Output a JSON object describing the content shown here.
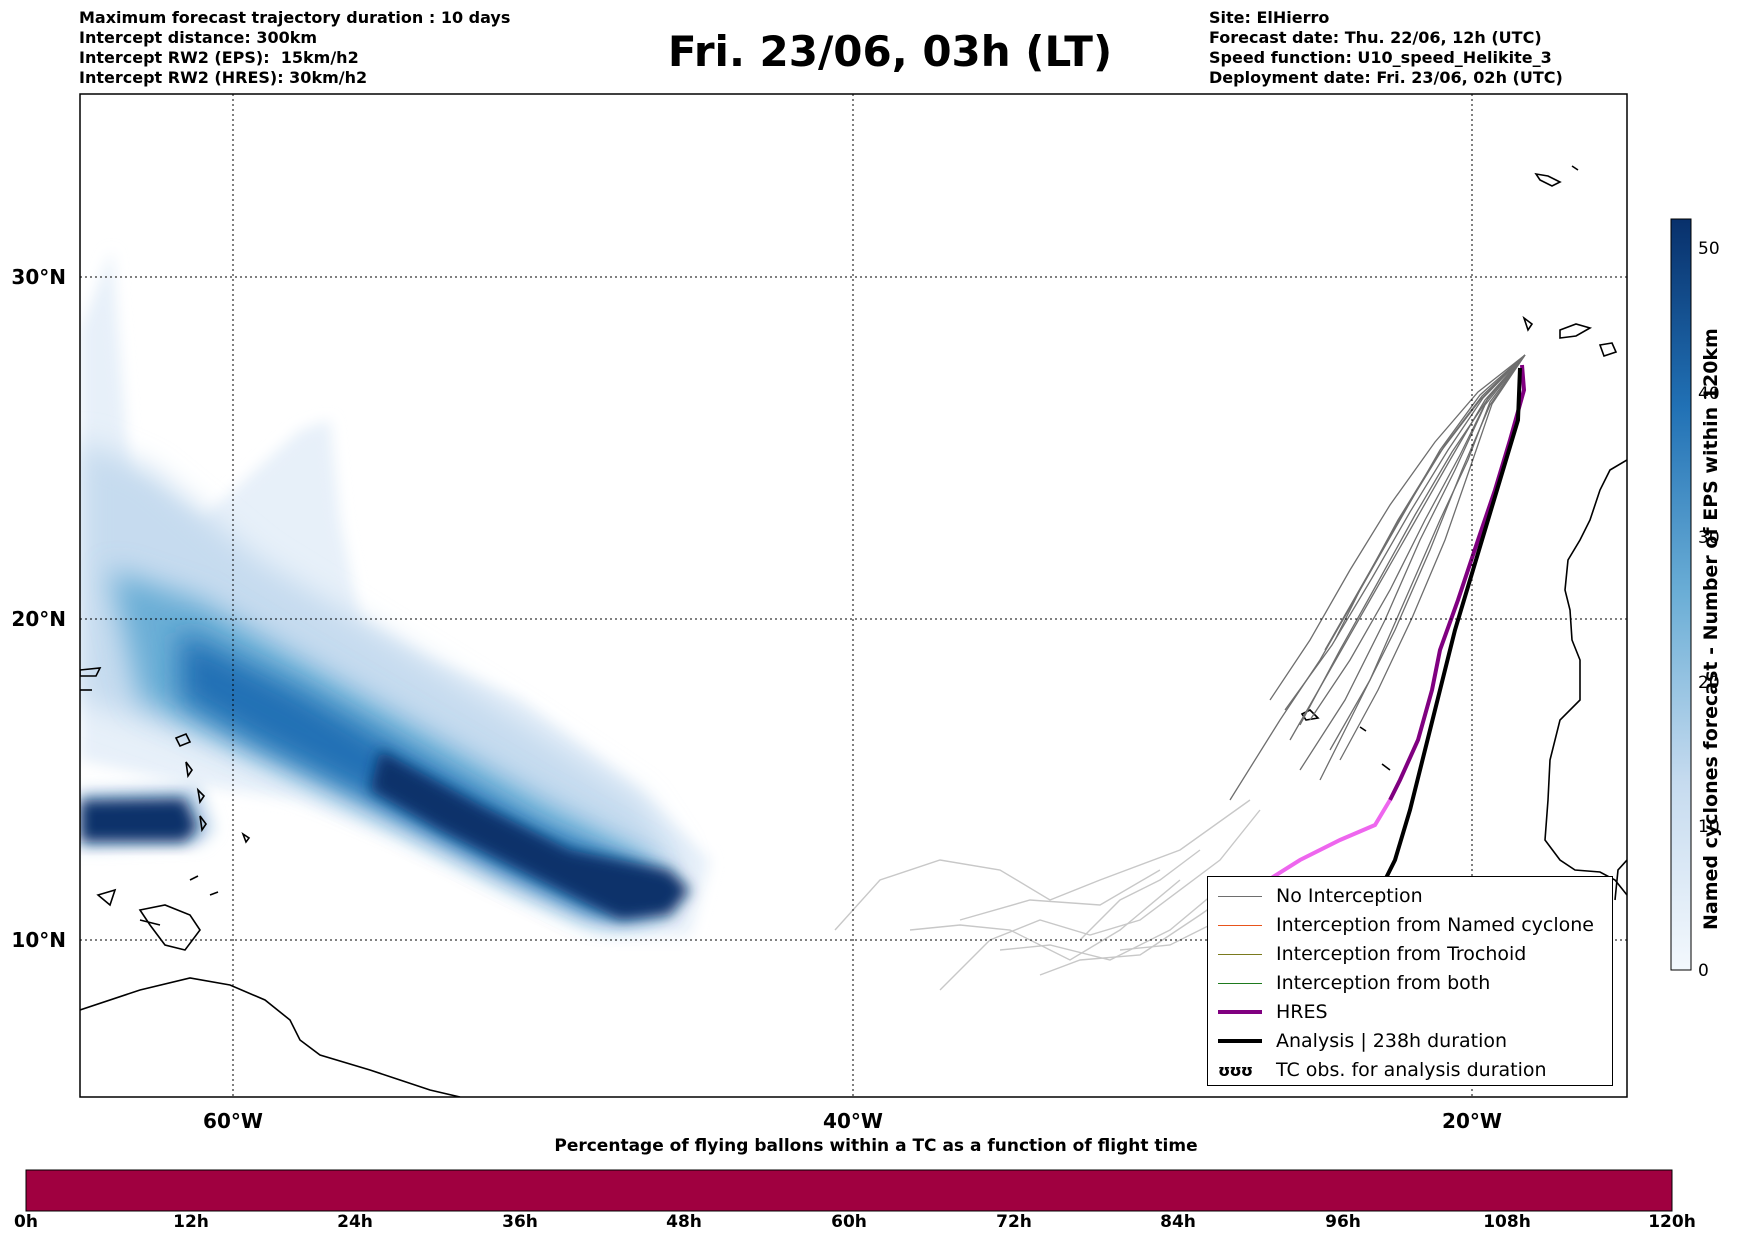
{
  "header": {
    "left": [
      "Maximum forecast trajectory duration : 10 days",
      "Intercept distance: 300km",
      "Intercept RW2 (EPS):  15km/h2",
      "Intercept RW2 (HRES): 30km/h2"
    ],
    "right": [
      "Site: ElHierro",
      "Forecast date: Thu. 22/06, 12h (UTC)",
      "Speed function: U10_speed_Helikite_3",
      "Deployment date: Fri. 23/06, 02h (UTC)"
    ]
  },
  "title": "Fri. 23/06, 03h (LT)",
  "map": {
    "lon_ticks": [
      "60°W",
      "40°W",
      "20°W"
    ],
    "lat_ticks": [
      "30°N",
      "20°N",
      "10°N"
    ],
    "gridlines": "dotted",
    "extent": {
      "lon_min": -65,
      "lon_max": -15,
      "lat_min": 5.4,
      "lat_max": 34.7
    }
  },
  "colorbar": {
    "title": "Named cyclones forecast - Number of EPS within 120km",
    "ticks": [
      "0",
      "10",
      "20",
      "30",
      "40",
      "50"
    ],
    "min": 0,
    "max": 52,
    "colors": [
      "#eef4fb",
      "#c6dbef",
      "#6baed6",
      "#2171b5",
      "#08306b"
    ]
  },
  "legend": {
    "items": [
      {
        "label": "No Interception",
        "color": "#6e6e6e",
        "style": "thin"
      },
      {
        "label": "Interception from Named cyclone",
        "color": "#e8541b",
        "style": "thin"
      },
      {
        "label": "Interception from Trochoid",
        "color": "#7a7a1e",
        "style": "thin"
      },
      {
        "label": "Interception from both",
        "color": "#1e7a1e",
        "style": "thin"
      },
      {
        "label": "HRES",
        "color": "#800080",
        "style": "thick"
      },
      {
        "label": "Analysis | 238h duration",
        "color": "#000000",
        "style": "thick"
      },
      {
        "label": "TC obs. for analysis duration",
        "symbol": "ʊʊʊ"
      }
    ]
  },
  "bottom_bar": {
    "title": "Percentage of flying ballons within a TC as a function of flight time",
    "ticks": [
      "0h",
      "12h",
      "24h",
      "36h",
      "48h",
      "60h",
      "72h",
      "84h",
      "96h",
      "108h",
      "120h"
    ],
    "color": "#a00040"
  }
}
